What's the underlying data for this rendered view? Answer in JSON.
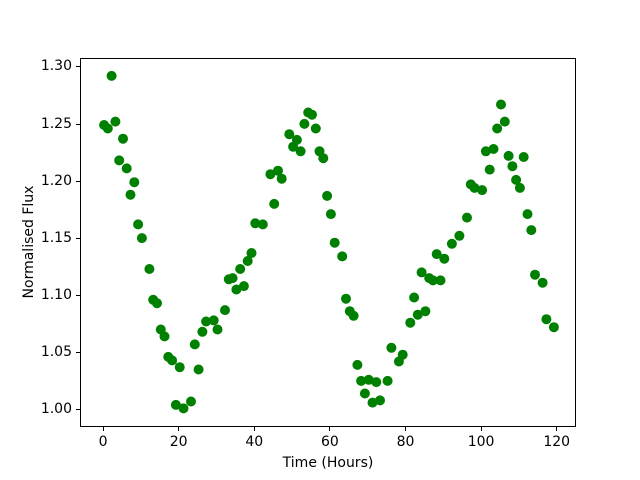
{
  "figure": {
    "background_color": "#ffffff",
    "text_color": "#000000"
  },
  "chart_data": {
    "type": "scatter",
    "title": "",
    "xlabel": "Time (Hours)",
    "ylabel": "Normalised Flux",
    "xticks": [
      0,
      20,
      40,
      60,
      80,
      100,
      120
    ],
    "yticks": [
      "1.00",
      "1.05",
      "1.10",
      "1.15",
      "1.20",
      "1.25",
      "1.30"
    ],
    "xlim": [
      -6.1,
      125.1
    ],
    "ylim": [
      0.9848,
      1.3078
    ],
    "grid": false,
    "legend": null,
    "marker_color": "#008000",
    "marker_radius_px": 5,
    "series": [
      {
        "name": "normalised-flux",
        "x": [
          0,
          1,
          2,
          3,
          4,
          5,
          6,
          7,
          8,
          9,
          10,
          12,
          13,
          14,
          15,
          16,
          17,
          18,
          19,
          20,
          21,
          23,
          24,
          25,
          26,
          27,
          29,
          30,
          32,
          33,
          34,
          35,
          36,
          37,
          38,
          39,
          40,
          42,
          44,
          45,
          46,
          47,
          49,
          50,
          51,
          52,
          53,
          54,
          55,
          56,
          57,
          58,
          59,
          60,
          61,
          63,
          64,
          65,
          66,
          67,
          68,
          69,
          70,
          71,
          72,
          73,
          75,
          76,
          78,
          79,
          81,
          82,
          83,
          84,
          85,
          86,
          87,
          88,
          89,
          90,
          92,
          94,
          96,
          97,
          98,
          100,
          101,
          102,
          103,
          104,
          105,
          106,
          107,
          108,
          109,
          110,
          111,
          112,
          113,
          114,
          116,
          117,
          119
        ],
        "y": [
          1.25,
          1.247,
          1.293,
          1.253,
          1.219,
          1.238,
          1.212,
          1.189,
          1.2,
          1.163,
          1.151,
          1.124,
          1.097,
          1.094,
          1.071,
          1.065,
          1.047,
          1.044,
          1.005,
          1.038,
          1.002,
          1.008,
          1.058,
          1.036,
          1.069,
          1.078,
          1.079,
          1.071,
          1.088,
          1.115,
          1.116,
          1.106,
          1.124,
          1.109,
          1.131,
          1.138,
          1.164,
          1.163,
          1.207,
          1.181,
          1.21,
          1.203,
          1.242,
          1.231,
          1.237,
          1.227,
          1.251,
          1.261,
          1.259,
          1.247,
          1.227,
          1.221,
          1.188,
          1.172,
          1.147,
          1.135,
          1.098,
          1.087,
          1.083,
          1.04,
          1.026,
          1.015,
          1.027,
          1.007,
          1.025,
          1.009,
          1.026,
          1.055,
          1.043,
          1.049,
          1.077,
          1.099,
          1.084,
          1.121,
          1.087,
          1.116,
          1.114,
          1.137,
          1.114,
          1.133,
          1.146,
          1.153,
          1.169,
          1.198,
          1.195,
          1.193,
          1.227,
          1.211,
          1.229,
          1.247,
          1.268,
          1.253,
          1.223,
          1.214,
          1.202,
          1.195,
          1.222,
          1.172,
          1.158,
          1.119,
          1.112,
          1.08,
          1.073
        ]
      }
    ]
  }
}
